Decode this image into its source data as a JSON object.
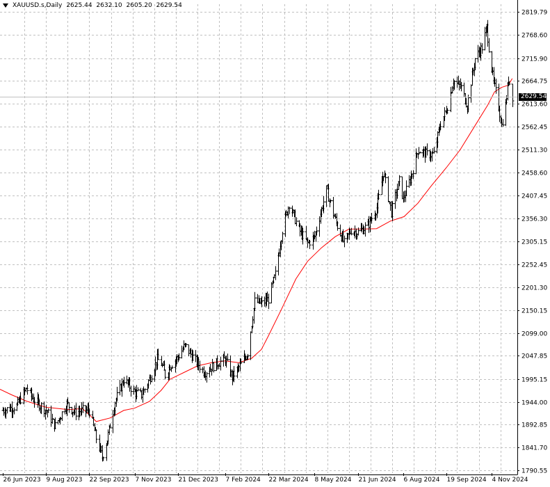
{
  "header": {
    "symbol": "XAUUSD.s,Daily",
    "open": "2625.44",
    "high": "2632.10",
    "low": "2605.20",
    "close": "2629.54"
  },
  "current_price": "2629.54",
  "colors": {
    "background": "#ffffff",
    "grid": "#c0c0c0",
    "bars": "#000000",
    "moving_average": "#ff0000",
    "price_line": "#c0c0c0",
    "price_tag_bg": "#000000"
  },
  "chart_data": {
    "type": "ohlc",
    "title": "XAUUSD.s,Daily",
    "xlabel": "",
    "ylabel": "",
    "grid": true,
    "ylim": [
      1790.55,
      2819.79
    ],
    "y_ticks": [
      "2819.79",
      "2768.60",
      "2715.90",
      "2664.75",
      "2613.60",
      "2562.45",
      "2511.30",
      "2458.60",
      "2407.45",
      "2356.30",
      "2305.15",
      "2252.45",
      "2201.30",
      "2150.15",
      "2099.00",
      "2047.85",
      "1995.15",
      "1944.00",
      "1892.85",
      "1841.70",
      "1790.55"
    ],
    "x_ticks": [
      "26 Jun 2023",
      "9 Aug 2023",
      "22 Sep 2023",
      "7 Nov 2023",
      "21 Dec 2023",
      "7 Feb 2024",
      "22 Mar 2024",
      "8 May 2024",
      "21 Jun 2024",
      "6 Aug 2024",
      "19 Sep 2024",
      "4 Nov 2024"
    ],
    "series": [
      {
        "type": "ohlc",
        "close_path": [
          [
            "2023-06-26",
            1925
          ],
          [
            "2023-07-10",
            1935
          ],
          [
            "2023-07-20",
            1975
          ],
          [
            "2023-07-27",
            1950
          ],
          [
            "2023-08-09",
            1925
          ],
          [
            "2023-08-18",
            1890
          ],
          [
            "2023-08-30",
            1940
          ],
          [
            "2023-09-07",
            1920
          ],
          [
            "2023-09-15",
            1925
          ],
          [
            "2023-09-22",
            1925
          ],
          [
            "2023-09-28",
            1870
          ],
          [
            "2023-10-05",
            1820
          ],
          [
            "2023-10-10",
            1860
          ],
          [
            "2023-10-18",
            1945
          ],
          [
            "2023-10-27",
            1995
          ],
          [
            "2023-11-07",
            1965
          ],
          [
            "2023-11-14",
            1960
          ],
          [
            "2023-11-22",
            1995
          ],
          [
            "2023-11-30",
            2040
          ],
          [
            "2023-12-04",
            2030
          ],
          [
            "2023-12-08",
            2005
          ],
          [
            "2023-12-13",
            2025
          ],
          [
            "2023-12-21",
            2045
          ],
          [
            "2023-12-28",
            2070
          ],
          [
            "2024-01-05",
            2045
          ],
          [
            "2024-01-17",
            2010
          ],
          [
            "2024-01-29",
            2030
          ],
          [
            "2024-02-07",
            2040
          ],
          [
            "2024-02-14",
            2000
          ],
          [
            "2024-02-22",
            2025
          ],
          [
            "2024-03-01",
            2055
          ],
          [
            "2024-03-08",
            2170
          ],
          [
            "2024-03-15",
            2165
          ],
          [
            "2024-03-22",
            2175
          ],
          [
            "2024-03-29",
            2230
          ],
          [
            "2024-04-05",
            2330
          ],
          [
            "2024-04-12",
            2390
          ],
          [
            "2024-04-22",
            2330
          ],
          [
            "2024-05-01",
            2300
          ],
          [
            "2024-05-08",
            2315
          ],
          [
            "2024-05-20",
            2420
          ],
          [
            "2024-05-30",
            2345
          ],
          [
            "2024-06-07",
            2300
          ],
          [
            "2024-06-14",
            2330
          ],
          [
            "2024-06-21",
            2325
          ],
          [
            "2024-07-01",
            2340
          ],
          [
            "2024-07-10",
            2380
          ],
          [
            "2024-07-17",
            2460
          ],
          [
            "2024-07-25",
            2370
          ],
          [
            "2024-08-02",
            2440
          ],
          [
            "2024-08-06",
            2400
          ],
          [
            "2024-08-14",
            2450
          ],
          [
            "2024-08-21",
            2510
          ],
          [
            "2024-08-30",
            2500
          ],
          [
            "2024-09-06",
            2500
          ],
          [
            "2024-09-13",
            2570
          ],
          [
            "2024-09-19",
            2600
          ],
          [
            "2024-09-26",
            2665
          ],
          [
            "2024-10-04",
            2650
          ],
          [
            "2024-10-10",
            2610
          ],
          [
            "2024-10-18",
            2715
          ],
          [
            "2024-10-25",
            2740
          ],
          [
            "2024-10-30",
            2785
          ],
          [
            "2024-11-01",
            2740
          ],
          [
            "2024-11-06",
            2660
          ],
          [
            "2024-11-10",
            2620
          ],
          [
            "2024-11-14",
            2565
          ],
          [
            "2024-11-18",
            2610
          ],
          [
            "2024-11-21",
            2670
          ],
          [
            "2024-11-25",
            2630
          ]
        ]
      },
      {
        "type": "line",
        "color": "#ff0000",
        "points": [
          [
            "2023-06-16",
            1980
          ],
          [
            "2023-07-05",
            1960
          ],
          [
            "2023-07-20",
            1946
          ],
          [
            "2023-08-09",
            1932
          ],
          [
            "2023-08-31",
            1927
          ],
          [
            "2023-09-15",
            1929
          ],
          [
            "2023-09-22",
            1915
          ],
          [
            "2023-09-29",
            1900
          ],
          [
            "2023-10-13",
            1908
          ],
          [
            "2023-10-27",
            1925
          ],
          [
            "2023-11-07",
            1930
          ],
          [
            "2023-11-22",
            1945
          ],
          [
            "2023-12-04",
            1970
          ],
          [
            "2023-12-13",
            1995
          ],
          [
            "2023-12-27",
            2010
          ],
          [
            "2024-01-10",
            2025
          ],
          [
            "2024-01-24",
            2032
          ],
          [
            "2024-02-07",
            2036
          ],
          [
            "2024-02-21",
            2032
          ],
          [
            "2024-03-05",
            2042
          ],
          [
            "2024-03-15",
            2062
          ],
          [
            "2024-03-22",
            2092
          ],
          [
            "2024-04-05",
            2155
          ],
          [
            "2024-04-19",
            2220
          ],
          [
            "2024-05-01",
            2260
          ],
          [
            "2024-05-15",
            2290
          ],
          [
            "2024-05-29",
            2315
          ],
          [
            "2024-06-12",
            2332
          ],
          [
            "2024-06-26",
            2332
          ],
          [
            "2024-07-10",
            2333
          ],
          [
            "2024-07-24",
            2350
          ],
          [
            "2024-08-07",
            2360
          ],
          [
            "2024-08-21",
            2390
          ],
          [
            "2024-09-04",
            2430
          ],
          [
            "2024-09-19",
            2470
          ],
          [
            "2024-10-03",
            2510
          ],
          [
            "2024-10-17",
            2560
          ],
          [
            "2024-10-31",
            2610
          ],
          [
            "2024-11-07",
            2640
          ],
          [
            "2024-11-14",
            2650
          ],
          [
            "2024-11-21",
            2655
          ],
          [
            "2024-11-25",
            2670
          ]
        ]
      }
    ]
  }
}
